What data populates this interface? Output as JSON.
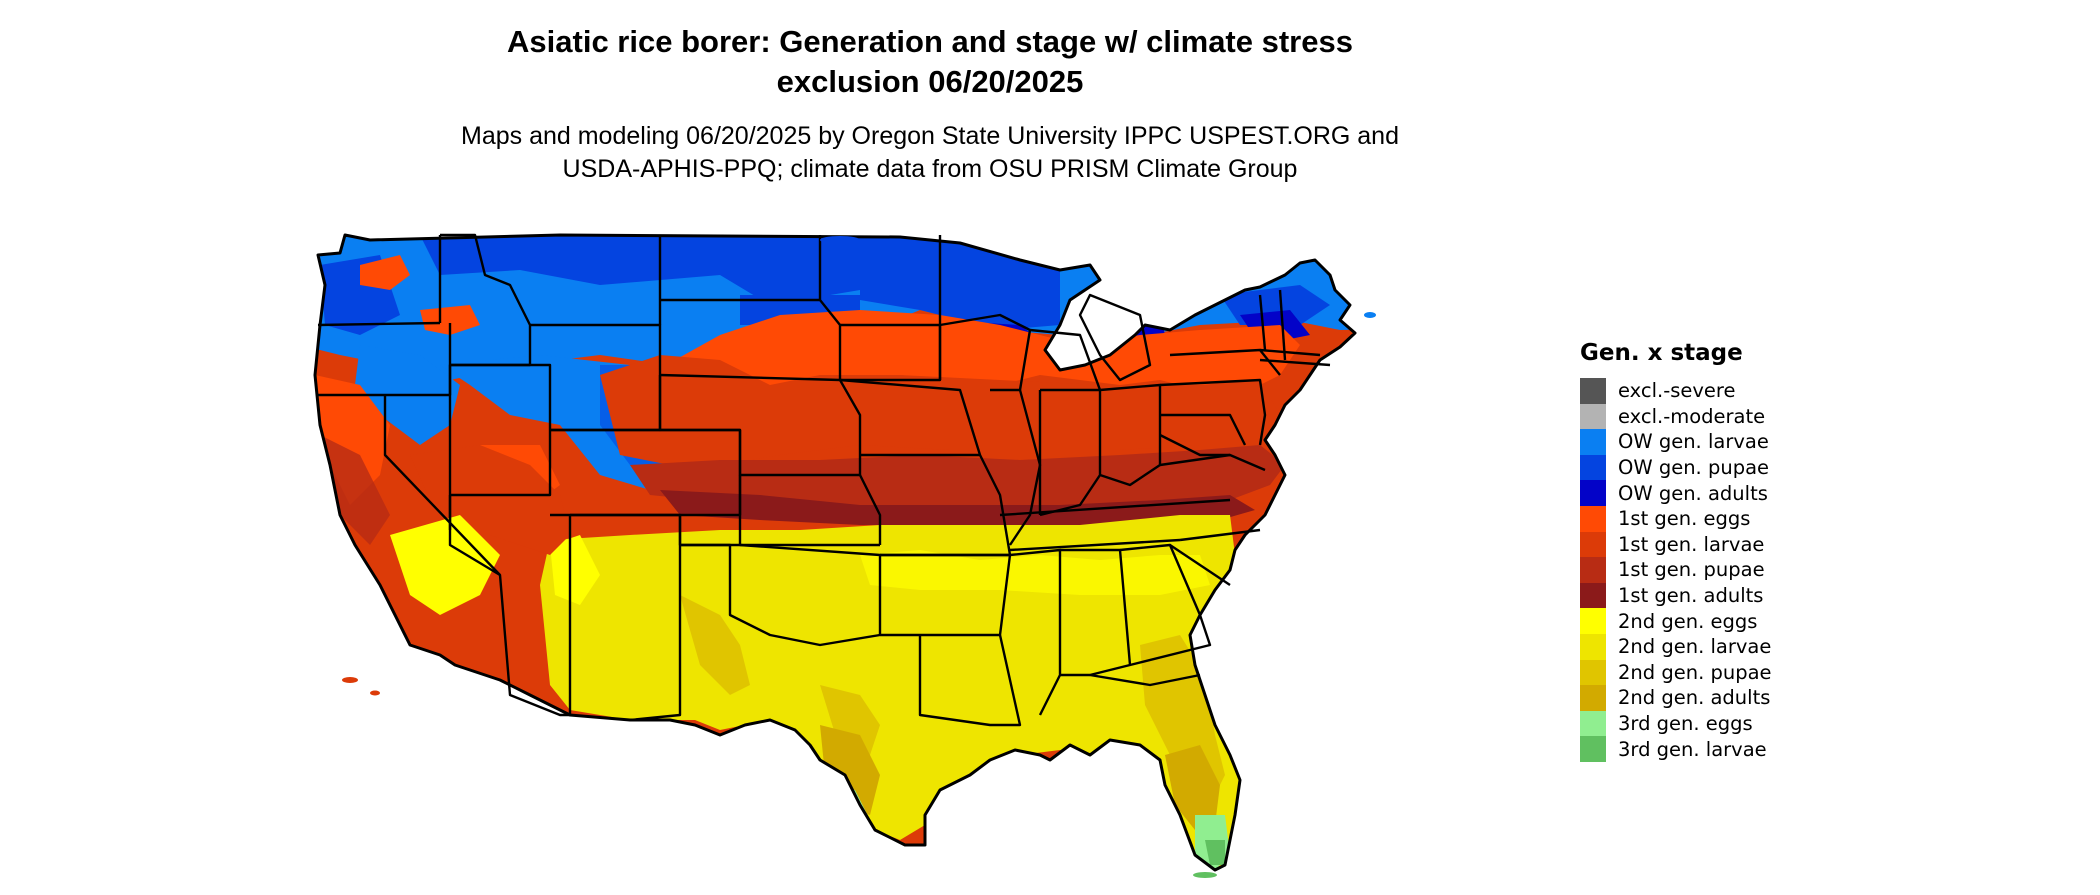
{
  "title": {
    "line1": "Asiatic rice borer: Generation and stage w/ climate stress",
    "line2": "exclusion 06/20/2025"
  },
  "subtitle": {
    "line1": "Maps and modeling 06/20/2025 by Oregon State University IPPC USPEST.ORG and",
    "line2": "USDA-APHIS-PPQ; climate data from OSU PRISM Climate Group"
  },
  "legend": {
    "title": "Gen. x stage",
    "items": [
      {
        "label": "excl.-severe",
        "color": "#555555"
      },
      {
        "label": "excl.-moderate",
        "color": "#b3b3b3"
      },
      {
        "label": "OW gen. larvae",
        "color": "#0a7ff2"
      },
      {
        "label": "OW gen. pupae",
        "color": "#0444e0"
      },
      {
        "label": "OW gen. adults",
        "color": "#0303c8"
      },
      {
        "label": "1st gen. eggs",
        "color": "#ff4a05"
      },
      {
        "label": "1st gen. larvae",
        "color": "#dc3b08"
      },
      {
        "label": "1st gen. pupae",
        "color": "#b82c14"
      },
      {
        "label": "1st gen. adults",
        "color": "#8b1a1a"
      },
      {
        "label": "2nd gen. eggs",
        "color": "#ffff00"
      },
      {
        "label": "2nd gen. larvae",
        "color": "#eee500"
      },
      {
        "label": "2nd gen. pupae",
        "color": "#e0c500"
      },
      {
        "label": "2nd gen. adults",
        "color": "#d2aa00"
      },
      {
        "label": "3rd gen. eggs",
        "color": "#90ee90"
      },
      {
        "label": "3rd gen. larvae",
        "color": "#60c060"
      }
    ]
  },
  "map": {
    "region": "contiguous-united-states",
    "layer": "generation-x-stage"
  }
}
